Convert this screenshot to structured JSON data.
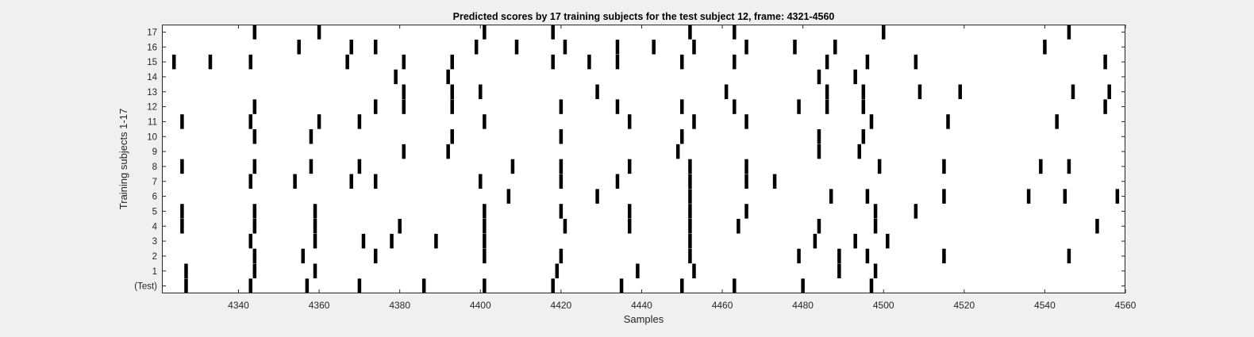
{
  "chart_data": {
    "type": "raster",
    "title": "Predicted scores by 17 training subjects for the test subject 12, frame: 4321-4560",
    "xlabel": "Samples",
    "ylabel": "Training subjects 1-17",
    "xlim": [
      4321,
      4560
    ],
    "xticks": [
      4340,
      4360,
      4380,
      4400,
      4420,
      4440,
      4460,
      4480,
      4500,
      4520,
      4540,
      4560
    ],
    "yticklabels": [
      "(Test)",
      "1",
      "2",
      "3",
      "4",
      "5",
      "6",
      "7",
      "8",
      "9",
      "10",
      "11",
      "12",
      "13",
      "14",
      "15",
      "16",
      "17"
    ],
    "event_color": "#000000",
    "rows": [
      {
        "label": "(Test)",
        "events": [
          4327,
          4343,
          4357,
          4370,
          4386,
          4401,
          4418,
          4435,
          4450,
          4463,
          4480,
          4497
        ]
      },
      {
        "label": "1",
        "events": [
          4327,
          4344,
          4359,
          4419,
          4439,
          4453,
          4489,
          4498
        ]
      },
      {
        "label": "2",
        "events": [
          4344,
          4356,
          4374,
          4401,
          4420,
          4452,
          4479,
          4489,
          4496,
          4515,
          4546
        ]
      },
      {
        "label": "3",
        "events": [
          4343,
          4359,
          4371,
          4378,
          4389,
          4401,
          4452,
          4483,
          4493,
          4501
        ]
      },
      {
        "label": "4",
        "events": [
          4326,
          4344,
          4359,
          4380,
          4401,
          4421,
          4437,
          4452,
          4464,
          4484,
          4498,
          4553
        ]
      },
      {
        "label": "5",
        "events": [
          4326,
          4344,
          4359,
          4401,
          4420,
          4437,
          4452,
          4466,
          4498,
          4508
        ]
      },
      {
        "label": "6",
        "events": [
          4407,
          4429,
          4452,
          4487,
          4496,
          4515,
          4536,
          4545,
          4558
        ]
      },
      {
        "label": "7",
        "events": [
          4343,
          4354,
          4368,
          4374,
          4400,
          4420,
          4434,
          4452,
          4466,
          4473
        ]
      },
      {
        "label": "8",
        "events": [
          4326,
          4344,
          4358,
          4370,
          4408,
          4420,
          4437,
          4452,
          4466,
          4499,
          4515,
          4539,
          4546
        ]
      },
      {
        "label": "9",
        "events": [
          4381,
          4392,
          4449,
          4484,
          4494
        ]
      },
      {
        "label": "10",
        "events": [
          4344,
          4358,
          4393,
          4420,
          4450,
          4484,
          4495
        ]
      },
      {
        "label": "11",
        "events": [
          4326,
          4343,
          4360,
          4370,
          4401,
          4437,
          4453,
          4466,
          4497,
          4516,
          4543
        ]
      },
      {
        "label": "12",
        "events": [
          4344,
          4374,
          4381,
          4393,
          4420,
          4434,
          4450,
          4463,
          4479,
          4486,
          4495,
          4555
        ]
      },
      {
        "label": "13",
        "events": [
          4381,
          4393,
          4400,
          4429,
          4461,
          4486,
          4495,
          4509,
          4519,
          4547,
          4556
        ]
      },
      {
        "label": "14",
        "events": [
          4379,
          4392,
          4484,
          4493
        ]
      },
      {
        "label": "15",
        "events": [
          4324,
          4333,
          4343,
          4367,
          4381,
          4393,
          4418,
          4427,
          4434,
          4450,
          4463,
          4486,
          4496,
          4508,
          4555
        ]
      },
      {
        "label": "16",
        "events": [
          4355,
          4368,
          4374,
          4399,
          4409,
          4421,
          4434,
          4443,
          4453,
          4466,
          4478,
          4488,
          4540
        ]
      },
      {
        "label": "17",
        "events": [
          4344,
          4360,
          4401,
          4418,
          4452,
          4463,
          4500,
          4546
        ]
      }
    ]
  }
}
